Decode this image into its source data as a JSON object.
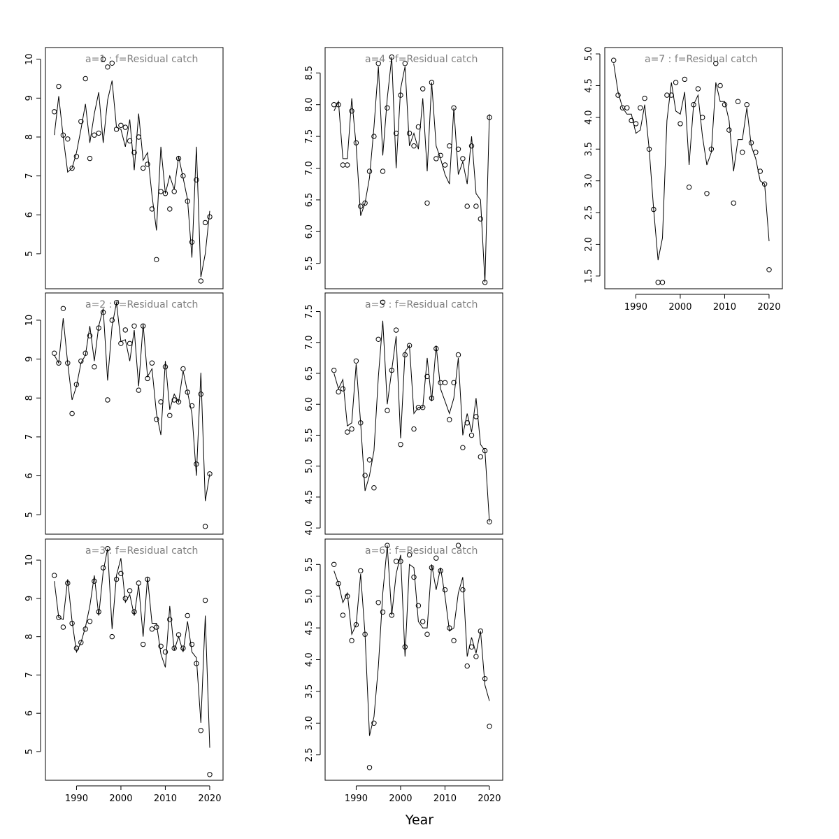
{
  "figure": {
    "xlabel": "Year"
  },
  "chart_data": [
    {
      "type": "line",
      "title": "a=1  :  f=Residual catch",
      "xlim": [
        1983,
        2023
      ],
      "ylim": [
        4.1,
        10.3
      ],
      "yticks": [
        5,
        6,
        7,
        8,
        9,
        10
      ],
      "xticks": [
        1990,
        2000,
        2010,
        2020
      ],
      "x": [
        1985,
        1986,
        1987,
        1988,
        1989,
        1990,
        1991,
        1992,
        1993,
        1994,
        1995,
        1996,
        1997,
        1998,
        1999,
        2000,
        2001,
        2002,
        2003,
        2004,
        2005,
        2006,
        2007,
        2008,
        2009,
        2010,
        2011,
        2012,
        2013,
        2014,
        2015,
        2016,
        2017,
        2018,
        2019,
        2020
      ],
      "series": [
        {
          "label": "fitted",
          "style": "line",
          "values": [
            8.05,
            9.05,
            8.0,
            7.1,
            7.2,
            7.6,
            8.2,
            8.85,
            7.85,
            8.6,
            9.15,
            7.85,
            8.95,
            9.45,
            8.25,
            8.2,
            7.75,
            8.45,
            7.15,
            8.6,
            7.4,
            7.6,
            6.5,
            5.6,
            7.75,
            6.55,
            7.0,
            6.65,
            7.5,
            6.95,
            6.4,
            4.9,
            7.75,
            4.4,
            5.0,
            6.1
          ]
        },
        {
          "label": "observed",
          "style": "points",
          "values": [
            8.65,
            9.3,
            8.05,
            7.95,
            7.2,
            7.5,
            8.4,
            9.5,
            7.45,
            8.05,
            8.1,
            10.0,
            9.8,
            9.9,
            8.2,
            8.3,
            8.25,
            7.9,
            7.6,
            8.0,
            7.2,
            7.3,
            6.15,
            4.85,
            6.6,
            6.55,
            6.15,
            6.6,
            7.45,
            7.0,
            6.35,
            5.3,
            6.9,
            4.3,
            5.8,
            5.95
          ]
        }
      ]
    },
    {
      "type": "line",
      "title": "a=2  :  f=Residual catch",
      "xlim": [
        1983,
        2023
      ],
      "ylim": [
        4.5,
        10.7
      ],
      "yticks": [
        5,
        6,
        7,
        8,
        9,
        10
      ],
      "xticks": [
        1990,
        2000,
        2010,
        2020
      ],
      "x": [
        1985,
        1986,
        1987,
        1988,
        1989,
        1990,
        1991,
        1992,
        1993,
        1994,
        1995,
        1996,
        1997,
        1998,
        1999,
        2000,
        2001,
        2002,
        2003,
        2004,
        2005,
        2006,
        2007,
        2008,
        2009,
        2010,
        2011,
        2012,
        2013,
        2014,
        2015,
        2016,
        2017,
        2018,
        2019,
        2020
      ],
      "series": [
        {
          "label": "fitted",
          "style": "line",
          "values": [
            9.1,
            8.9,
            10.05,
            8.9,
            7.95,
            8.3,
            8.9,
            9.1,
            9.85,
            8.95,
            9.85,
            10.3,
            8.45,
            9.85,
            10.45,
            9.45,
            9.5,
            8.95,
            9.75,
            8.3,
            9.9,
            8.55,
            8.75,
            7.6,
            7.05,
            8.95,
            7.7,
            8.1,
            7.9,
            8.7,
            8.15,
            7.6,
            6.0,
            8.65,
            5.35,
            6.05
          ]
        },
        {
          "label": "observed",
          "style": "points",
          "values": [
            9.15,
            8.9,
            10.3,
            8.9,
            7.6,
            8.35,
            8.95,
            9.15,
            9.6,
            8.8,
            9.8,
            10.2,
            7.95,
            10.0,
            10.45,
            9.4,
            9.75,
            9.4,
            9.85,
            8.2,
            9.85,
            8.5,
            8.9,
            7.45,
            7.9,
            8.8,
            7.55,
            7.95,
            7.9,
            8.75,
            8.15,
            7.8,
            6.3,
            8.1,
            4.7,
            6.05
          ]
        }
      ]
    },
    {
      "type": "line",
      "title": "a=3  :  f=Residual catch",
      "xlim": [
        1983,
        2023
      ],
      "ylim": [
        4.25,
        10.55
      ],
      "yticks": [
        5,
        6,
        7,
        8,
        9,
        10
      ],
      "xticks": [
        1990,
        2000,
        2010,
        2020
      ],
      "x": [
        1985,
        1986,
        1987,
        1988,
        1989,
        1990,
        1991,
        1992,
        1993,
        1994,
        1995,
        1996,
        1997,
        1998,
        1999,
        2000,
        2001,
        2002,
        2003,
        2004,
        2005,
        2006,
        2007,
        2008,
        2009,
        2010,
        2011,
        2012,
        2013,
        2014,
        2015,
        2016,
        2017,
        2018,
        2019,
        2020
      ],
      "series": [
        {
          "label": "fitted",
          "style": "line",
          "values": [
            9.45,
            8.5,
            8.45,
            9.5,
            8.4,
            7.6,
            7.85,
            8.25,
            8.8,
            9.6,
            8.55,
            9.7,
            10.3,
            8.2,
            9.6,
            10.05,
            8.9,
            9.1,
            8.55,
            9.35,
            8.0,
            9.55,
            8.35,
            8.35,
            7.55,
            7.2,
            8.8,
            7.65,
            8.0,
            7.6,
            8.4,
            7.6,
            7.45,
            5.75,
            8.55,
            5.1
          ]
        },
        {
          "label": "observed",
          "style": "points",
          "values": [
            9.6,
            8.5,
            8.25,
            9.4,
            8.35,
            7.7,
            7.85,
            8.2,
            8.4,
            9.45,
            8.65,
            9.8,
            10.3,
            8.0,
            9.5,
            9.65,
            9.0,
            9.2,
            8.65,
            9.4,
            7.8,
            9.5,
            8.2,
            8.25,
            7.75,
            7.6,
            8.45,
            7.7,
            8.05,
            7.7,
            8.55,
            7.8,
            7.3,
            5.55,
            8.95,
            4.4
          ]
        }
      ]
    },
    {
      "type": "line",
      "title": "a=4  :  f=Residual catch",
      "xlim": [
        1983,
        2023
      ],
      "ylim": [
        5.1,
        8.9
      ],
      "yticks": [
        5.5,
        6.0,
        6.5,
        7.0,
        7.5,
        8.0,
        8.5
      ],
      "ytick_labels": [
        "5.5",
        "6.0",
        "6.5",
        "7.0",
        "7.5",
        "8.0",
        "8.5"
      ],
      "xticks": [
        1990,
        2000,
        2010,
        2020
      ],
      "x": [
        1985,
        1986,
        1987,
        1988,
        1989,
        1990,
        1991,
        1992,
        1993,
        1994,
        1995,
        1996,
        1997,
        1998,
        1999,
        2000,
        2001,
        2002,
        2003,
        2004,
        2005,
        2006,
        2007,
        2008,
        2009,
        2010,
        2011,
        2012,
        2013,
        2014,
        2015,
        2016,
        2017,
        2018,
        2019,
        2020
      ],
      "series": [
        {
          "label": "fitted",
          "style": "line",
          "values": [
            7.9,
            8.05,
            7.15,
            7.15,
            8.1,
            7.35,
            6.25,
            6.45,
            6.85,
            7.65,
            8.6,
            7.2,
            8.1,
            8.75,
            7.0,
            8.25,
            8.6,
            7.35,
            7.55,
            7.3,
            8.1,
            6.95,
            8.35,
            7.35,
            7.15,
            6.9,
            6.75,
            7.95,
            6.9,
            7.1,
            6.75,
            7.5,
            6.6,
            6.5,
            5.2,
            7.85
          ]
        },
        {
          "label": "observed",
          "style": "points",
          "values": [
            8.0,
            8.0,
            7.05,
            7.05,
            7.9,
            7.4,
            6.4,
            6.45,
            6.95,
            7.5,
            8.65,
            6.95,
            7.95,
            8.75,
            7.55,
            8.15,
            8.65,
            7.55,
            7.35,
            7.65,
            8.25,
            6.45,
            8.35,
            7.15,
            7.2,
            7.05,
            7.35,
            7.95,
            7.3,
            7.15,
            6.4,
            7.35,
            6.4,
            6.2,
            5.2,
            7.8
          ]
        }
      ]
    },
    {
      "type": "line",
      "title": "a=5  :  f=Residual catch",
      "xlim": [
        1983,
        2023
      ],
      "ylim": [
        3.9,
        7.8
      ],
      "yticks": [
        4.0,
        4.5,
        5.0,
        5.5,
        6.0,
        6.5,
        7.0,
        7.5
      ],
      "ytick_labels": [
        "4.0",
        "4.5",
        "5.0",
        "5.5",
        "6.0",
        "6.5",
        "7.0",
        "7.5"
      ],
      "xticks": [
        1990,
        2000,
        2010,
        2020
      ],
      "x": [
        1985,
        1986,
        1987,
        1988,
        1989,
        1990,
        1991,
        1992,
        1993,
        1994,
        1995,
        1996,
        1997,
        1998,
        1999,
        2000,
        2001,
        2002,
        2003,
        2004,
        2005,
        2006,
        2007,
        2008,
        2009,
        2010,
        2011,
        2012,
        2013,
        2014,
        2015,
        2016,
        2017,
        2018,
        2019,
        2020
      ],
      "series": [
        {
          "label": "fitted",
          "style": "line",
          "values": [
            6.5,
            6.25,
            6.4,
            5.65,
            5.7,
            6.65,
            5.7,
            4.6,
            4.85,
            5.25,
            6.45,
            7.35,
            6.0,
            6.55,
            7.1,
            5.45,
            6.85,
            6.95,
            5.85,
            5.95,
            5.95,
            6.75,
            6.05,
            6.95,
            6.25,
            6.05,
            5.85,
            6.1,
            6.75,
            5.5,
            5.85,
            5.55,
            6.1,
            5.35,
            5.25,
            4.1
          ]
        },
        {
          "label": "observed",
          "style": "points",
          "values": [
            6.55,
            6.2,
            6.25,
            5.55,
            5.6,
            6.7,
            5.7,
            4.85,
            5.1,
            4.65,
            7.05,
            7.65,
            5.9,
            6.55,
            7.2,
            5.35,
            6.8,
            6.95,
            5.6,
            5.95,
            5.95,
            6.45,
            6.1,
            6.9,
            6.35,
            6.35,
            5.75,
            6.35,
            6.8,
            5.3,
            5.7,
            5.5,
            5.8,
            5.15,
            5.25,
            4.1
          ]
        }
      ]
    },
    {
      "type": "line",
      "title": "a=6  :  f=Residual catch",
      "xlim": [
        1983,
        2023
      ],
      "ylim": [
        2.1,
        5.9
      ],
      "yticks": [
        2.5,
        3.0,
        3.5,
        4.0,
        4.5,
        5.0,
        5.5
      ],
      "ytick_labels": [
        "2.5",
        "3.0",
        "3.5",
        "4.0",
        "4.5",
        "5.0",
        "5.5"
      ],
      "xticks": [
        1990,
        2000,
        2010,
        2020
      ],
      "x": [
        1985,
        1986,
        1987,
        1988,
        1989,
        1990,
        1991,
        1992,
        1993,
        1994,
        1995,
        1996,
        1997,
        1998,
        1999,
        2000,
        2001,
        2002,
        2003,
        2004,
        2005,
        2006,
        2007,
        2008,
        2009,
        2010,
        2011,
        2012,
        2013,
        2014,
        2015,
        2016,
        2017,
        2018,
        2019,
        2020
      ],
      "series": [
        {
          "label": "fitted",
          "style": "line",
          "values": [
            5.4,
            5.2,
            4.9,
            5.05,
            4.4,
            4.55,
            5.35,
            4.4,
            2.8,
            3.1,
            3.9,
            5.05,
            5.8,
            4.7,
            5.35,
            5.65,
            4.05,
            5.5,
            5.45,
            4.6,
            4.5,
            4.5,
            5.5,
            5.1,
            5.45,
            5.0,
            4.45,
            4.5,
            5.05,
            5.3,
            4.05,
            4.35,
            4.1,
            4.45,
            3.6,
            3.35
          ]
        },
        {
          "label": "observed",
          "style": "points",
          "values": [
            5.5,
            5.2,
            4.7,
            5.0,
            4.3,
            4.55,
            5.4,
            4.4,
            2.3,
            3.0,
            4.9,
            4.75,
            5.8,
            4.7,
            5.55,
            5.55,
            4.2,
            5.65,
            5.3,
            4.85,
            4.6,
            4.4,
            5.45,
            5.6,
            5.4,
            5.1,
            4.5,
            4.3,
            5.8,
            5.1,
            3.9,
            4.2,
            4.05,
            4.45,
            3.7,
            2.95
          ]
        }
      ]
    },
    {
      "type": "line",
      "title": "a=7  :  f=Residual catch",
      "xlim": [
        1983,
        2023
      ],
      "ylim": [
        1.3,
        5.1
      ],
      "yticks": [
        1.5,
        2.0,
        2.5,
        3.0,
        3.5,
        4.0,
        4.5,
        5.0
      ],
      "ytick_labels": [
        "1.5",
        "2.0",
        "2.5",
        "3.0",
        "3.5",
        "4.0",
        "4.5",
        "5.0"
      ],
      "xticks": [
        1990,
        2000,
        2010,
        2020
      ],
      "x": [
        1985,
        1986,
        1987,
        1988,
        1989,
        1990,
        1991,
        1992,
        1993,
        1994,
        1995,
        1996,
        1997,
        1998,
        1999,
        2000,
        2001,
        2002,
        2003,
        2004,
        2005,
        2006,
        2007,
        2008,
        2009,
        2010,
        2011,
        2012,
        2013,
        2014,
        2015,
        2016,
        2017,
        2018,
        2019,
        2020
      ],
      "series": [
        {
          "label": "fitted",
          "style": "line",
          "values": [
            4.85,
            4.4,
            4.15,
            4.05,
            4.05,
            3.75,
            3.8,
            4.2,
            3.5,
            2.55,
            1.75,
            2.1,
            3.95,
            4.55,
            4.1,
            4.05,
            4.4,
            3.25,
            4.2,
            4.35,
            3.7,
            3.25,
            3.45,
            4.55,
            4.25,
            4.25,
            3.95,
            3.15,
            3.65,
            3.65,
            4.15,
            3.55,
            3.35,
            3.0,
            2.95,
            2.05
          ]
        },
        {
          "label": "observed",
          "style": "points",
          "values": [
            4.9,
            4.35,
            4.15,
            4.15,
            3.95,
            3.9,
            4.15,
            4.3,
            3.5,
            2.55,
            1.4,
            1.4,
            4.35,
            4.35,
            4.55,
            3.9,
            4.6,
            2.9,
            4.2,
            4.45,
            4.0,
            2.8,
            3.5,
            4.85,
            4.5,
            4.2,
            3.8,
            2.65,
            4.25,
            3.45,
            4.2,
            3.6,
            3.45,
            3.15,
            2.95,
            1.6
          ]
        }
      ]
    }
  ]
}
